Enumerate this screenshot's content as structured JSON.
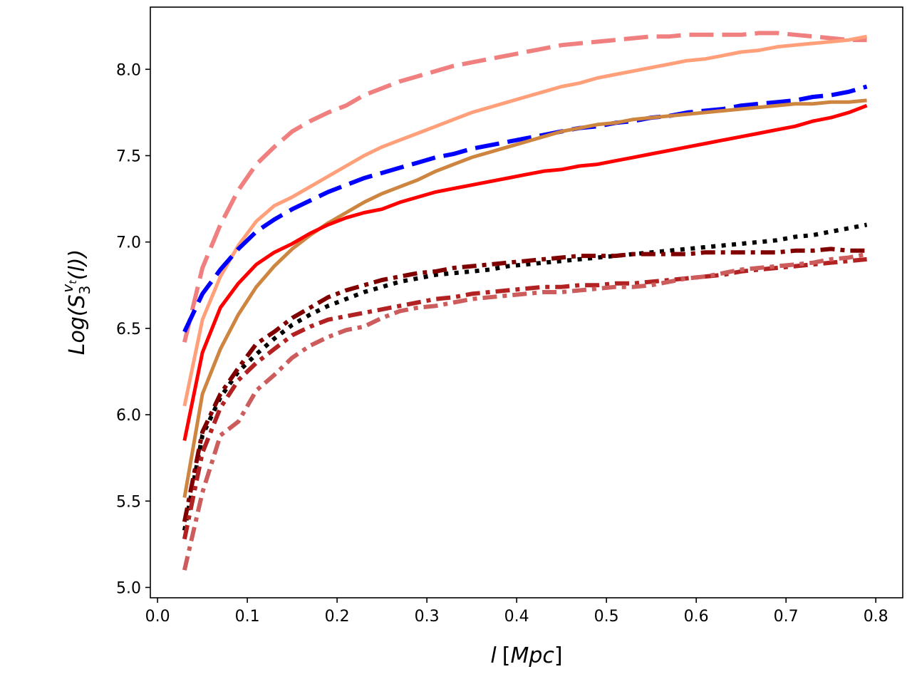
{
  "chart_data": {
    "type": "line",
    "title": "",
    "xlabel": "l [Mpc]",
    "ylabel": "Log(S3^vt(l))",
    "ylabel_parts": {
      "pre": "Log(",
      "base": "S",
      "sub": "3",
      "sup": "v",
      "supsub": "t",
      "post": "(l))"
    },
    "xlabel_parts": {
      "var": "l",
      "unit_open": "[",
      "unit": "Mpc",
      "unit_close": "]"
    },
    "xlim": [
      -0.008,
      0.83
    ],
    "ylim": [
      4.94,
      8.36
    ],
    "grid": false,
    "legend": "none",
    "xticks": [
      "0.0",
      "0.1",
      "0.2",
      "0.3",
      "0.4",
      "0.5",
      "0.6",
      "0.7",
      "0.8"
    ],
    "xtick_values": [
      0.0,
      0.1,
      0.2,
      0.3,
      0.4,
      0.5,
      0.6,
      0.7,
      0.8
    ],
    "yticks": [
      "5.0",
      "5.5",
      "6.0",
      "6.5",
      "7.0",
      "7.5",
      "8.0"
    ],
    "ytick_values": [
      5.0,
      5.5,
      6.0,
      6.5,
      7.0,
      7.5,
      8.0
    ],
    "series": [
      {
        "name": "light-coral-dashed",
        "color": "#f08080",
        "style": "dashed",
        "width": "thick",
        "x": [
          0.03,
          0.05,
          0.07,
          0.09,
          0.11,
          0.13,
          0.15,
          0.17,
          0.19,
          0.21,
          0.23,
          0.25,
          0.27,
          0.29,
          0.31,
          0.33,
          0.35,
          0.37,
          0.39,
          0.41,
          0.43,
          0.45,
          0.47,
          0.49,
          0.51,
          0.53,
          0.55,
          0.57,
          0.59,
          0.61,
          0.63,
          0.65,
          0.67,
          0.69,
          0.71,
          0.73,
          0.75,
          0.77,
          0.79
        ],
        "y": [
          6.42,
          6.85,
          7.1,
          7.3,
          7.45,
          7.55,
          7.64,
          7.7,
          7.75,
          7.79,
          7.85,
          7.89,
          7.93,
          7.96,
          7.99,
          8.02,
          8.04,
          8.06,
          8.08,
          8.1,
          8.12,
          8.14,
          8.15,
          8.16,
          8.17,
          8.18,
          8.19,
          8.19,
          8.2,
          8.2,
          8.2,
          8.2,
          8.21,
          8.21,
          8.2,
          8.19,
          8.18,
          8.17,
          8.17
        ]
      },
      {
        "name": "light-salmon-solid",
        "color": "#ffa07a",
        "style": "solid",
        "width": "medium",
        "x": [
          0.03,
          0.05,
          0.07,
          0.09,
          0.11,
          0.13,
          0.15,
          0.17,
          0.19,
          0.21,
          0.23,
          0.25,
          0.27,
          0.29,
          0.31,
          0.33,
          0.35,
          0.37,
          0.39,
          0.41,
          0.43,
          0.45,
          0.47,
          0.49,
          0.51,
          0.53,
          0.55,
          0.57,
          0.59,
          0.61,
          0.63,
          0.65,
          0.67,
          0.69,
          0.71,
          0.73,
          0.75,
          0.77,
          0.79
        ],
        "y": [
          6.05,
          6.55,
          6.8,
          6.98,
          7.12,
          7.21,
          7.26,
          7.32,
          7.38,
          7.44,
          7.5,
          7.55,
          7.59,
          7.63,
          7.67,
          7.71,
          7.75,
          7.78,
          7.81,
          7.84,
          7.87,
          7.9,
          7.92,
          7.95,
          7.97,
          7.99,
          8.01,
          8.03,
          8.05,
          8.06,
          8.08,
          8.1,
          8.11,
          8.13,
          8.14,
          8.15,
          8.16,
          8.17,
          8.19
        ]
      },
      {
        "name": "blue-dashed",
        "color": "#0000ff",
        "style": "dashed",
        "width": "thick",
        "x": [
          0.03,
          0.05,
          0.07,
          0.09,
          0.11,
          0.13,
          0.15,
          0.17,
          0.19,
          0.21,
          0.23,
          0.25,
          0.27,
          0.29,
          0.31,
          0.33,
          0.35,
          0.37,
          0.39,
          0.41,
          0.43,
          0.45,
          0.47,
          0.49,
          0.51,
          0.53,
          0.55,
          0.57,
          0.59,
          0.61,
          0.63,
          0.65,
          0.67,
          0.69,
          0.71,
          0.73,
          0.75,
          0.77,
          0.79
        ],
        "y": [
          6.48,
          6.7,
          6.84,
          6.96,
          7.06,
          7.13,
          7.19,
          7.24,
          7.29,
          7.33,
          7.37,
          7.4,
          7.43,
          7.46,
          7.49,
          7.51,
          7.54,
          7.56,
          7.58,
          7.6,
          7.62,
          7.64,
          7.66,
          7.67,
          7.69,
          7.7,
          7.72,
          7.73,
          7.75,
          7.76,
          7.77,
          7.79,
          7.8,
          7.81,
          7.82,
          7.84,
          7.85,
          7.87,
          7.9
        ]
      },
      {
        "name": "peru-solid",
        "color": "#cd853f",
        "style": "solid",
        "width": "medium",
        "x": [
          0.03,
          0.05,
          0.07,
          0.09,
          0.11,
          0.13,
          0.15,
          0.17,
          0.19,
          0.21,
          0.23,
          0.25,
          0.27,
          0.29,
          0.31,
          0.33,
          0.35,
          0.37,
          0.39,
          0.41,
          0.43,
          0.45,
          0.47,
          0.49,
          0.51,
          0.53,
          0.55,
          0.57,
          0.59,
          0.61,
          0.63,
          0.65,
          0.67,
          0.69,
          0.71,
          0.73,
          0.75,
          0.77,
          0.79
        ],
        "y": [
          5.52,
          6.12,
          6.38,
          6.58,
          6.74,
          6.86,
          6.96,
          7.04,
          7.11,
          7.17,
          7.23,
          7.28,
          7.32,
          7.36,
          7.41,
          7.45,
          7.49,
          7.52,
          7.55,
          7.58,
          7.61,
          7.64,
          7.66,
          7.68,
          7.69,
          7.71,
          7.72,
          7.73,
          7.74,
          7.75,
          7.76,
          7.77,
          7.78,
          7.79,
          7.8,
          7.8,
          7.81,
          7.81,
          7.82
        ]
      },
      {
        "name": "red-solid",
        "color": "#ff0000",
        "style": "solid",
        "width": "medium",
        "x": [
          0.03,
          0.05,
          0.07,
          0.09,
          0.11,
          0.13,
          0.15,
          0.17,
          0.19,
          0.21,
          0.23,
          0.25,
          0.27,
          0.29,
          0.31,
          0.33,
          0.35,
          0.37,
          0.39,
          0.41,
          0.43,
          0.45,
          0.47,
          0.49,
          0.51,
          0.53,
          0.55,
          0.57,
          0.59,
          0.61,
          0.63,
          0.65,
          0.67,
          0.69,
          0.71,
          0.73,
          0.75,
          0.77,
          0.79
        ],
        "y": [
          5.85,
          6.36,
          6.62,
          6.76,
          6.87,
          6.94,
          6.99,
          7.05,
          7.1,
          7.14,
          7.17,
          7.19,
          7.23,
          7.26,
          7.29,
          7.31,
          7.33,
          7.35,
          7.37,
          7.39,
          7.41,
          7.42,
          7.44,
          7.45,
          7.47,
          7.49,
          7.51,
          7.53,
          7.55,
          7.57,
          7.59,
          7.61,
          7.63,
          7.65,
          7.67,
          7.7,
          7.72,
          7.75,
          7.79
        ]
      },
      {
        "name": "black-dotted",
        "color": "#000000",
        "style": "dotted",
        "width": "thick",
        "x": [
          0.03,
          0.05,
          0.07,
          0.09,
          0.11,
          0.13,
          0.15,
          0.17,
          0.19,
          0.21,
          0.23,
          0.25,
          0.27,
          0.29,
          0.31,
          0.33,
          0.35,
          0.37,
          0.39,
          0.41,
          0.43,
          0.45,
          0.47,
          0.49,
          0.51,
          0.53,
          0.55,
          0.57,
          0.59,
          0.61,
          0.63,
          0.65,
          0.67,
          0.69,
          0.71,
          0.73,
          0.75,
          0.77,
          0.79
        ],
        "y": [
          5.33,
          5.88,
          6.1,
          6.25,
          6.35,
          6.44,
          6.52,
          6.58,
          6.63,
          6.67,
          6.71,
          6.74,
          6.77,
          6.79,
          6.81,
          6.82,
          6.83,
          6.84,
          6.86,
          6.87,
          6.88,
          6.89,
          6.9,
          6.91,
          6.92,
          6.93,
          6.94,
          6.95,
          6.96,
          6.97,
          6.98,
          6.99,
          7.0,
          7.01,
          7.03,
          7.04,
          7.06,
          7.08,
          7.1
        ]
      },
      {
        "name": "maroon-dashdot",
        "color": "#800000",
        "style": "dashdot",
        "width": "thick",
        "x": [
          0.03,
          0.05,
          0.07,
          0.09,
          0.11,
          0.13,
          0.15,
          0.17,
          0.19,
          0.21,
          0.23,
          0.25,
          0.27,
          0.29,
          0.31,
          0.33,
          0.35,
          0.37,
          0.39,
          0.41,
          0.43,
          0.45,
          0.47,
          0.49,
          0.51,
          0.53,
          0.55,
          0.57,
          0.59,
          0.61,
          0.63,
          0.65,
          0.67,
          0.69,
          0.71,
          0.73,
          0.75,
          0.77,
          0.79
        ],
        "y": [
          5.38,
          5.9,
          6.12,
          6.27,
          6.41,
          6.48,
          6.56,
          6.62,
          6.68,
          6.72,
          6.75,
          6.78,
          6.8,
          6.82,
          6.83,
          6.85,
          6.86,
          6.87,
          6.88,
          6.89,
          6.9,
          6.91,
          6.92,
          6.92,
          6.92,
          6.93,
          6.93,
          6.93,
          6.93,
          6.94,
          6.94,
          6.94,
          6.94,
          6.94,
          6.95,
          6.95,
          6.96,
          6.95,
          6.95
        ]
      },
      {
        "name": "brown-dashdot",
        "color": "#b22222",
        "style": "dashdot",
        "width": "thick",
        "x": [
          0.03,
          0.05,
          0.07,
          0.09,
          0.11,
          0.13,
          0.15,
          0.17,
          0.19,
          0.21,
          0.23,
          0.25,
          0.27,
          0.29,
          0.31,
          0.33,
          0.35,
          0.37,
          0.39,
          0.41,
          0.43,
          0.45,
          0.47,
          0.49,
          0.51,
          0.53,
          0.55,
          0.57,
          0.59,
          0.61,
          0.63,
          0.65,
          0.67,
          0.69,
          0.71,
          0.73,
          0.75,
          0.77,
          0.79
        ],
        "y": [
          5.28,
          5.78,
          6.04,
          6.2,
          6.3,
          6.38,
          6.46,
          6.51,
          6.55,
          6.57,
          6.59,
          6.61,
          6.63,
          6.65,
          6.67,
          6.68,
          6.7,
          6.71,
          6.72,
          6.73,
          6.74,
          6.74,
          6.75,
          6.75,
          6.76,
          6.76,
          6.77,
          6.78,
          6.79,
          6.8,
          6.81,
          6.83,
          6.84,
          6.85,
          6.86,
          6.87,
          6.88,
          6.89,
          6.9
        ]
      },
      {
        "name": "indian-red-dashdot",
        "color": "#cd5c5c",
        "style": "dashdot",
        "width": "thick",
        "x": [
          0.03,
          0.05,
          0.07,
          0.09,
          0.11,
          0.13,
          0.15,
          0.17,
          0.19,
          0.21,
          0.23,
          0.25,
          0.27,
          0.29,
          0.31,
          0.33,
          0.35,
          0.37,
          0.39,
          0.41,
          0.43,
          0.45,
          0.47,
          0.49,
          0.51,
          0.53,
          0.55,
          0.57,
          0.59,
          0.61,
          0.63,
          0.65,
          0.67,
          0.69,
          0.71,
          0.73,
          0.75,
          0.77,
          0.79
        ],
        "y": [
          5.1,
          5.55,
          5.88,
          5.96,
          6.14,
          6.23,
          6.33,
          6.4,
          6.45,
          6.49,
          6.51,
          6.56,
          6.6,
          6.62,
          6.63,
          6.65,
          6.67,
          6.68,
          6.69,
          6.7,
          6.71,
          6.71,
          6.72,
          6.73,
          6.74,
          6.74,
          6.75,
          6.77,
          6.79,
          6.8,
          6.82,
          6.84,
          6.85,
          6.86,
          6.87,
          6.88,
          6.9,
          6.91,
          6.93
        ]
      }
    ]
  }
}
